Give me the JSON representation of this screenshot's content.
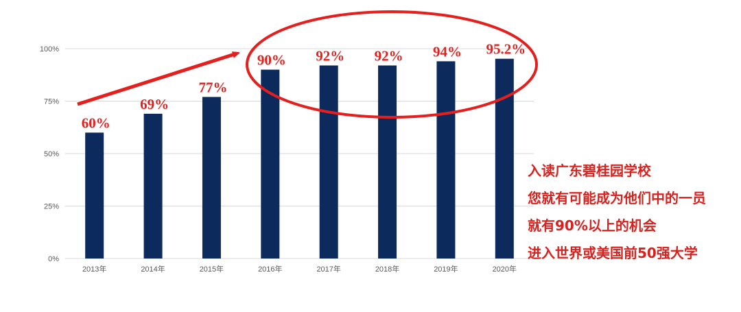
{
  "chart_data": {
    "type": "bar",
    "categories": [
      "2013年",
      "2014年",
      "2015年",
      "2016年",
      "2017年",
      "2018年",
      "2019年",
      "2020年"
    ],
    "values": [
      60,
      69,
      77,
      90,
      92,
      92,
      94,
      95.2
    ],
    "value_labels": [
      "60%",
      "69%",
      "77%",
      "90%",
      "92%",
      "92%",
      "94%",
      "95.2%"
    ],
    "color": "#0d2a5c",
    "ylim": [
      0,
      100
    ],
    "yticks": [
      {
        "value": 0,
        "label": "0%"
      },
      {
        "value": 25,
        "label": "25%"
      },
      {
        "value": 50,
        "label": "50%"
      },
      {
        "value": 75,
        "label": "75%"
      },
      {
        "value": 100,
        "label": "100%"
      }
    ],
    "grid": true,
    "annotations": [
      "入读广东碧桂园学校",
      "您就有可能成为他们中的一员",
      "就有90%以上的机会",
      "进入世界或美国前50强大学"
    ]
  }
}
